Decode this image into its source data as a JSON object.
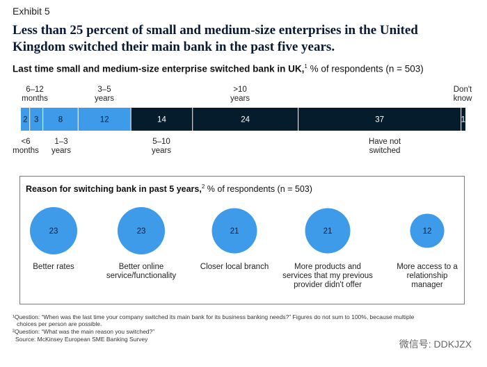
{
  "exhibit": "Exhibit 5",
  "headline_line1": "Less than 25 percent of small and medium-size enterprises in the United",
  "headline_line2": "Kingdom switched their main bank in the past five years.",
  "subtitle": {
    "bold": "Last time small and medium-size enterprise switched bank in UK,",
    "sup": "1",
    "rest": " % of respondents (n = 503)"
  },
  "colors": {
    "light": "#3d9be9",
    "dark": "#051c2c",
    "divider": "#ffffff"
  },
  "chart_data": [
    {
      "type": "bar",
      "orientation": "horizontal-stacked",
      "title": "Last time small and medium-size enterprise switched bank in UK, % of respondents (n = 503)",
      "categories": [
        "<6 months",
        "6–12 months",
        "1–3 years",
        "3–5 years",
        "5–10 years",
        ">10 years",
        "Have not switched",
        "Don't know"
      ],
      "values": [
        2,
        3,
        8,
        12,
        14,
        24,
        37,
        1
      ],
      "colors": [
        "#3d9be9",
        "#3d9be9",
        "#3d9be9",
        "#3d9be9",
        "#051c2c",
        "#051c2c",
        "#051c2c",
        "#051c2c"
      ]
    },
    {
      "type": "bubble",
      "title": "Reason for switching bank in past 5 years, % of respondents (n = 503)",
      "categories": [
        "Better rates",
        "Better online service/functionality",
        "Closer local branch",
        "More products and services that my previous provider didn't offer",
        "More access to a relationship manager"
      ],
      "values": [
        23,
        23,
        21,
        21,
        12
      ]
    }
  ],
  "bar_labels_top": [
    [
      "6–12",
      "months"
    ],
    [
      "3–5",
      "years"
    ],
    [
      ">10",
      "years"
    ],
    [
      "Don't",
      "know"
    ]
  ],
  "bar_labels_bottom": [
    [
      "<6",
      "months"
    ],
    [
      "1–3",
      "years"
    ],
    [
      "5–10",
      "years"
    ],
    [
      "Have not",
      "switched"
    ]
  ],
  "panel": {
    "title_bold": "Reason for switching bank in past 5 years,",
    "sup": "2",
    "title_rest": " % of respondents (n = 503)",
    "labels": [
      [
        "Better rates"
      ],
      [
        "Better online",
        "service/functionality"
      ],
      [
        "Closer local branch"
      ],
      [
        "More products and",
        "services that my previous",
        "provider didn't offer"
      ],
      [
        "More access to a",
        "relationship",
        "manager"
      ]
    ]
  },
  "footnotes": {
    "f1a": "¹Question: “When was the last time your company switched its main bank for its business banking needs?” Figures do not sum to 100%, because multiple",
    "f1b": "choices per person are possible.",
    "f2": "²Question: “What was the main reason you switched?”",
    "source": "Source: McKinsey European SME Banking Survey"
  },
  "watermark": "微信号: DDKJZX"
}
